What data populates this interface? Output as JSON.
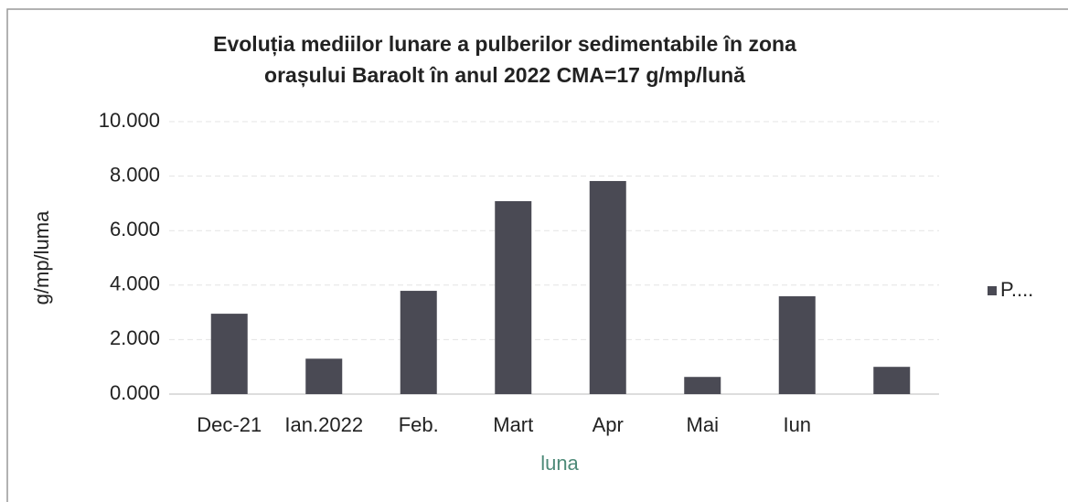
{
  "chart_data": {
    "type": "bar",
    "title": [
      "Evoluția mediilor lunare a pulberilor sedimentabile în zona",
      "orașului Baraolt în anul 2022 CMA=17 g/mp/lună"
    ],
    "x_label": "luna",
    "y_label": "g/mp/luma",
    "categories": [
      "Dec-21",
      "Ian.2022",
      "Feb.",
      "Mart",
      "Apr",
      "Mai",
      "Iun",
      null
    ],
    "series": [
      {
        "name": "P....",
        "color": "#4a4a54",
        "values": [
          2.95,
          1.3,
          3.79,
          7.08,
          7.82,
          0.63,
          3.59,
          1.0
        ]
      }
    ],
    "ylim": [
      0,
      10
    ],
    "yticks": [
      {
        "value": 0,
        "label": "0.000"
      },
      {
        "value": 2,
        "label": "2.000"
      },
      {
        "value": 4,
        "label": "4.000"
      },
      {
        "value": 6,
        "label": "6.000"
      },
      {
        "value": 8,
        "label": "8.000"
      },
      {
        "value": 10,
        "label": "10.000"
      }
    ],
    "grid": true,
    "legend": "right"
  }
}
